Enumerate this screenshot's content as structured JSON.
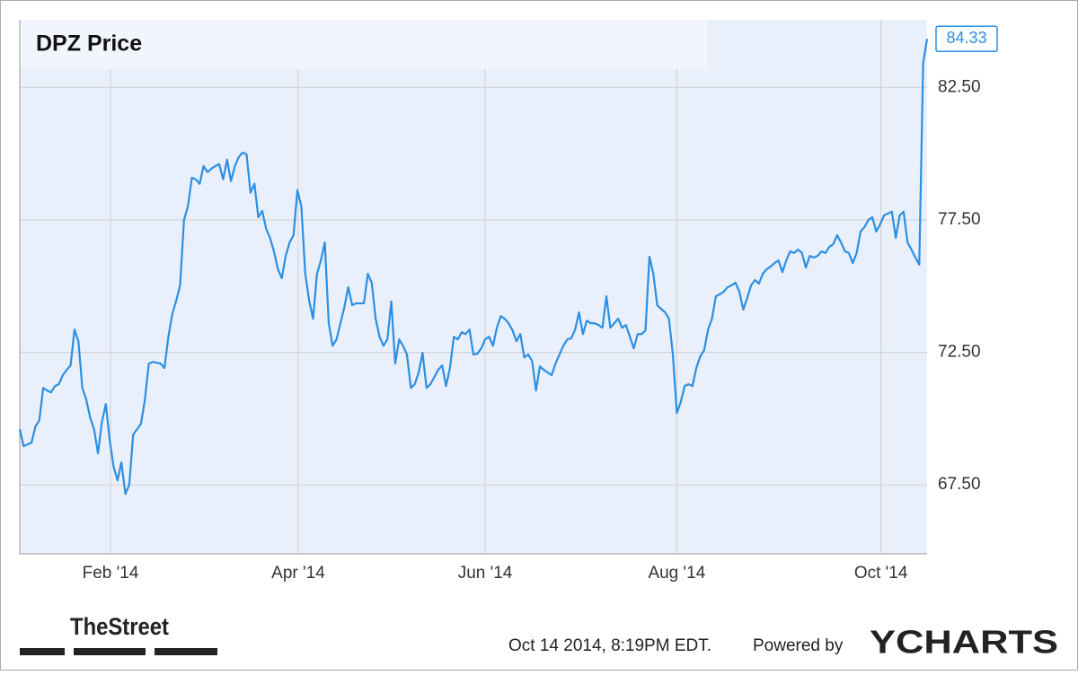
{
  "chart_data": {
    "type": "line",
    "title": "DPZ Price",
    "series": [
      {
        "name": "DPZ",
        "color": "#2b8fe3",
        "values": [
          69.6,
          68.96,
          69.03,
          69.09,
          69.7,
          69.94,
          71.16,
          71.06,
          70.99,
          71.23,
          71.3,
          71.64,
          71.84,
          72.01,
          73.36,
          72.92,
          71.16,
          70.72,
          70.04,
          69.6,
          68.69,
          69.87,
          70.55,
          69.19,
          68.18,
          67.67,
          68.35,
          67.16,
          67.5,
          69.4,
          69.6,
          69.81,
          70.72,
          72.08,
          72.14,
          72.11,
          72.08,
          71.91,
          73.09,
          73.94,
          74.45,
          75.03,
          77.5,
          78.01,
          79.09,
          79.03,
          78.86,
          79.53,
          79.3,
          79.43,
          79.53,
          79.6,
          79.03,
          79.77,
          78.96,
          79.53,
          79.87,
          80.04,
          79.97,
          78.52,
          78.86,
          77.6,
          77.84,
          77.16,
          76.82,
          76.31,
          75.64,
          75.3,
          76.14,
          76.65,
          76.92,
          78.62,
          78.01,
          75.47,
          74.45,
          73.77,
          75.47,
          75.97,
          76.65,
          73.6,
          72.75,
          72.99,
          73.6,
          74.21,
          74.96,
          74.28,
          74.35,
          74.35,
          74.35,
          75.47,
          75.13,
          73.77,
          73.09,
          72.75,
          72.99,
          74.42,
          72.08,
          72.99,
          72.75,
          72.42,
          71.16,
          71.3,
          71.74,
          72.48,
          71.16,
          71.3,
          71.57,
          71.84,
          72.01,
          71.23,
          71.91,
          73.09,
          72.99,
          73.26,
          73.19,
          73.36,
          72.42,
          72.45,
          72.65,
          72.99,
          73.09,
          72.75,
          73.43,
          73.87,
          73.77,
          73.6,
          73.33,
          72.92,
          73.19,
          72.31,
          72.42,
          72.18,
          71.06,
          71.97,
          71.84,
          71.74,
          71.64,
          72.08,
          72.42,
          72.75,
          72.99,
          73.03,
          73.36,
          74.01,
          73.19,
          73.7,
          73.6,
          73.6,
          73.53,
          73.43,
          74.62,
          73.43,
          73.6,
          73.77,
          73.43,
          73.53,
          73.09,
          72.65,
          73.19,
          73.19,
          73.33,
          76.11,
          75.47,
          74.28,
          74.14,
          74.01,
          73.77,
          72.42,
          70.21,
          70.62,
          71.23,
          71.3,
          71.23,
          71.91,
          72.35,
          72.58,
          73.36,
          73.77,
          74.62,
          74.69,
          74.79,
          74.96,
          75.03,
          75.13,
          74.79,
          74.11,
          74.55,
          75.03,
          75.23,
          75.09,
          75.47,
          75.64,
          75.74,
          75.87,
          75.97,
          75.53,
          75.97,
          76.31,
          76.25,
          76.38,
          76.25,
          75.7,
          76.14,
          76.08,
          76.14,
          76.31,
          76.25,
          76.48,
          76.58,
          76.92,
          76.65,
          76.31,
          76.25,
          75.87,
          76.25,
          77.06,
          77.23,
          77.5,
          77.6,
          77.06,
          77.33,
          77.67,
          77.74,
          77.81,
          76.82,
          77.67,
          77.81,
          76.65,
          76.38,
          76.08,
          75.81,
          83.43,
          84.33
        ]
      }
    ],
    "xlim": [
      0,
      232
    ],
    "xticks": [
      {
        "value": 23.2,
        "label": "Feb '14"
      },
      {
        "value": 71.2,
        "label": "Apr '14"
      },
      {
        "value": 119,
        "label": "Jun '14"
      },
      {
        "value": 168,
        "label": "Aug '14"
      },
      {
        "value": 220.2,
        "label": "Oct '14"
      }
    ],
    "ylim": [
      64.9,
      85.05
    ],
    "yticks": [
      {
        "value": 67.5,
        "label": "67.50"
      },
      {
        "value": 72.5,
        "label": "72.50"
      },
      {
        "value": 77.5,
        "label": "77.50"
      },
      {
        "value": 82.5,
        "label": "82.50"
      }
    ],
    "grid": true
  },
  "footer": {
    "source_logo": "TheStreet",
    "timestamp": "Oct 14 2014, 8:19PM EDT.",
    "powered_by": "Powered by",
    "brand": "YCHARTS"
  }
}
